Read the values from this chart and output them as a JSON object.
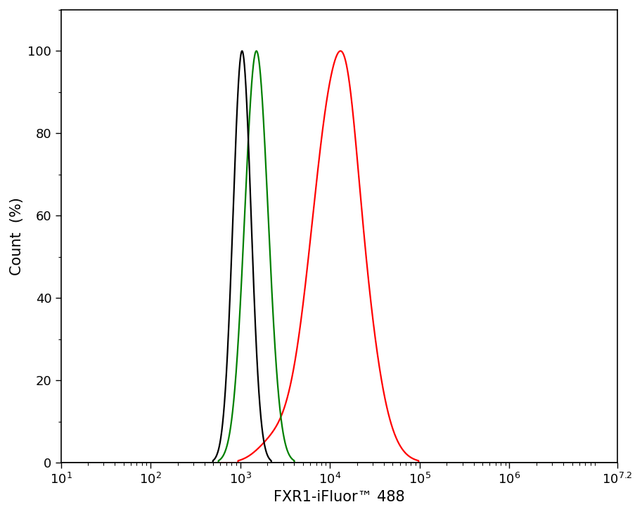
{
  "xlabel": "FXR1-iFluor™ 488",
  "ylabel": "Count  (%)",
  "xlim_log": [
    1,
    7.2
  ],
  "ylim": [
    0,
    110
  ],
  "yticks": [
    0,
    20,
    40,
    60,
    80,
    100
  ],
  "xtick_positions": [
    1,
    2,
    3,
    4,
    5,
    6,
    7.2
  ],
  "xtick_labels": [
    "10$^{1}$",
    "10$^{2}$",
    "10$^{3}$",
    "10$^{4}$",
    "10$^{5}$",
    "10$^{6}$",
    "10$^{7.2}$"
  ],
  "colors": {
    "black": "#000000",
    "green": "#008000",
    "red": "#ff0000"
  },
  "line_width": 1.6,
  "background_color": "#ffffff",
  "black_peak_log": 3.02,
  "black_sigma_log": 0.1,
  "green_peak_log": 3.18,
  "green_sigma_log": 0.13,
  "red_peak_log": 4.08,
  "red_sigma_log": 0.28,
  "xlabel_fontsize": 15,
  "ylabel_fontsize": 15,
  "tick_fontsize": 13
}
